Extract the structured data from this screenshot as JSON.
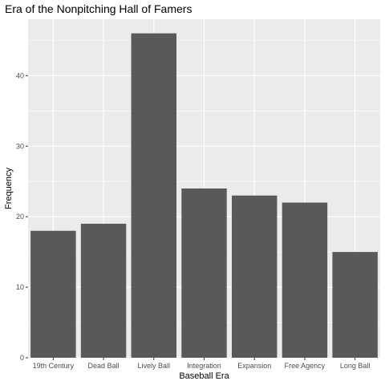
{
  "chart_data": {
    "type": "bar",
    "title": "Era of the Nonpitching Hall of Famers",
    "xlabel": "Baseball Era",
    "ylabel": "Frequency",
    "categories": [
      "19th Century",
      "Dead Ball",
      "Lively Ball",
      "Integration",
      "Expansion",
      "Free Agency",
      "Long Ball"
    ],
    "values": [
      18,
      19,
      46,
      24,
      23,
      22,
      15
    ],
    "ylim": [
      0,
      48
    ],
    "yticks": [
      0,
      10,
      20,
      30,
      40
    ],
    "grid": true,
    "legend": "none",
    "colors": {
      "bar": "#595959",
      "panel": "#ebebeb",
      "grid": "#ffffff"
    }
  }
}
